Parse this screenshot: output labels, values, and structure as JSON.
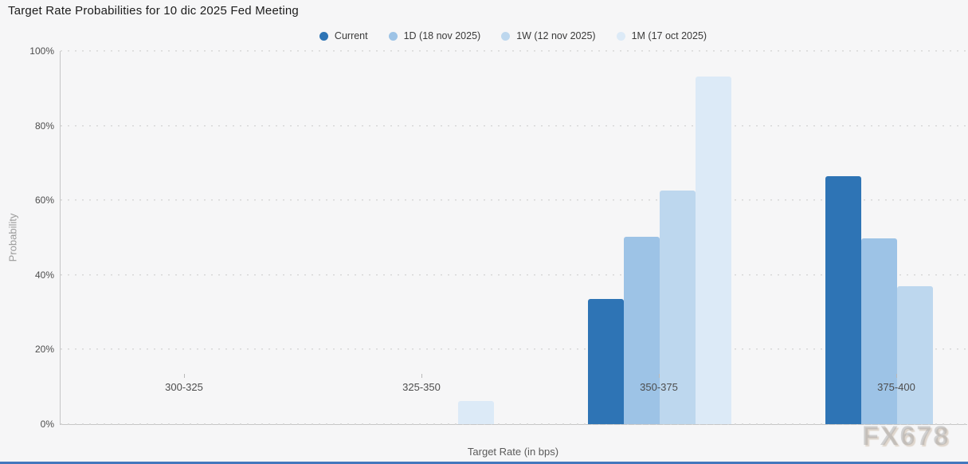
{
  "title": "Target Rate Probabilities for 10 dic 2025 Fed Meeting",
  "watermark": "FX678",
  "colors": {
    "background": "#f6f6f7",
    "accent_bar": "#4377bd",
    "axis_line": "#c6c6c6"
  },
  "chart_data": {
    "type": "bar",
    "title": "Target Rate Probabilities for 10 dic 2025 Fed Meeting",
    "xlabel": "Target Rate (in bps)",
    "ylabel": "Probability",
    "ylim": [
      0,
      100
    ],
    "yticks": [
      0,
      20,
      40,
      60,
      80,
      100
    ],
    "ytick_labels": [
      "0%",
      "20%",
      "40%",
      "60%",
      "80%",
      "100%"
    ],
    "categories": [
      "300-325",
      "325-350",
      "350-375",
      "375-400"
    ],
    "series": [
      {
        "name": "Current",
        "color": "#2e74b5",
        "values": [
          0,
          0,
          33.5,
          66.5
        ]
      },
      {
        "name": "1D (18 nov 2025)",
        "color": "#9dc3e6",
        "values": [
          0,
          0,
          50.2,
          49.8
        ]
      },
      {
        "name": "1W (12 nov 2025)",
        "color": "#bdd7ee",
        "values": [
          0,
          0,
          62.6,
          36.9
        ]
      },
      {
        "name": "1M (17 oct 2025)",
        "color": "#dceaf7",
        "values": [
          0,
          6.2,
          93.2,
          0
        ]
      }
    ],
    "legend_position": "top-center",
    "grid": "dotted-horizontal"
  }
}
